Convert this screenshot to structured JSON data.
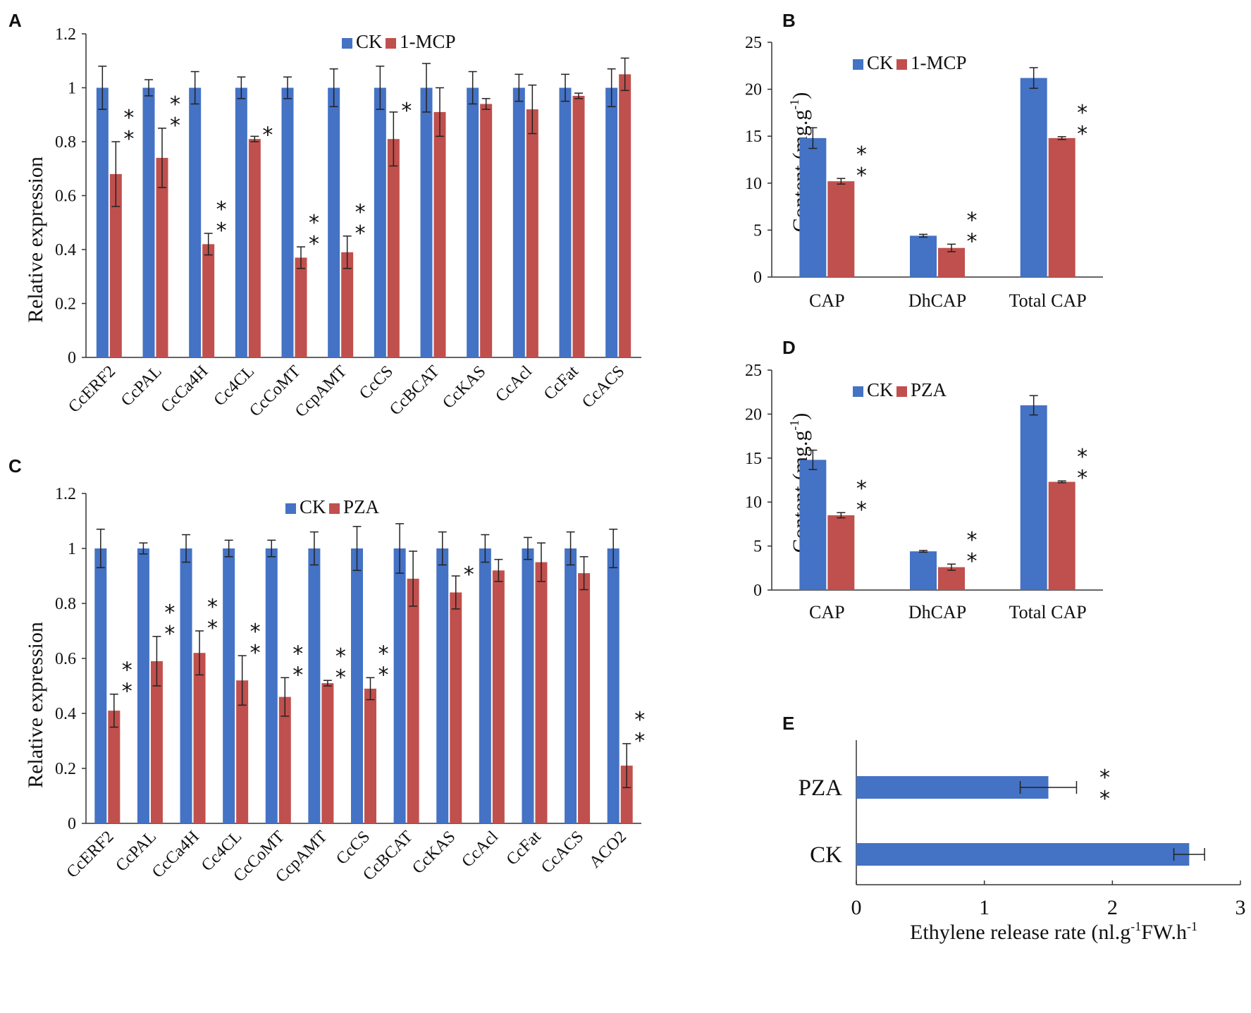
{
  "colors": {
    "ck": "#4472C4",
    "treat": "#C0504D",
    "axis": "#333333",
    "text": "#111111"
  },
  "chart_data": [
    {
      "panel": "A",
      "type": "bar",
      "ylabel": "Relative expression",
      "ylim": [
        0,
        1.2
      ],
      "yticks": [
        0,
        0.2,
        0.4,
        0.6,
        0.8,
        1,
        1.2
      ],
      "ytick_labels": [
        "0",
        "0.2",
        "0.4",
        "0.6",
        "0.8",
        "1",
        "1.2"
      ],
      "legend_position": "top-center",
      "categories": [
        "CcERF2",
        "CcPAL",
        "CcCa4H",
        "Cc4CL",
        "CcCoMT",
        "CcpAMT",
        "CcCS",
        "CcBCAT",
        "CcKAS",
        "CcAcl",
        "CcFat",
        "CcACS"
      ],
      "series": [
        {
          "name": "CK",
          "values": [
            1,
            1,
            1,
            1,
            1,
            1,
            1,
            1,
            1,
            1,
            1,
            1
          ],
          "errors": [
            0.08,
            0.03,
            0.06,
            0.04,
            0.04,
            0.07,
            0.08,
            0.09,
            0.06,
            0.05,
            0.05,
            0.07
          ]
        },
        {
          "name": "1-MCP",
          "values": [
            0.68,
            0.74,
            0.42,
            0.81,
            0.37,
            0.39,
            0.81,
            0.91,
            0.94,
            0.92,
            0.97,
            1.05
          ],
          "errors": [
            0.12,
            0.11,
            0.04,
            0.01,
            0.04,
            0.06,
            0.1,
            0.09,
            0.02,
            0.09,
            0.01,
            0.06
          ]
        }
      ],
      "significance": [
        "**",
        "**",
        "**",
        "*",
        "**",
        "**",
        "*",
        "",
        "",
        "",
        "",
        ""
      ]
    },
    {
      "panel": "B",
      "type": "bar",
      "ylabel": "Content (mg.g-1)",
      "ylabel_main": "Content",
      "ylabel_unit": "(mg.g",
      "ylabel_sup": "-1",
      "ylabel_close": ")",
      "ylim": [
        0,
        25
      ],
      "yticks": [
        0,
        5,
        10,
        15,
        20,
        25
      ],
      "ytick_labels": [
        "0",
        "5",
        "10",
        "15",
        "20",
        "25"
      ],
      "legend_position": "top-left",
      "categories": [
        "CAP",
        "DhCAP",
        "Total CAP"
      ],
      "series": [
        {
          "name": "CK",
          "values": [
            14.8,
            4.4,
            21.2
          ],
          "errors": [
            1.1,
            0.15,
            1.1
          ]
        },
        {
          "name": "1-MCP",
          "values": [
            10.2,
            3.1,
            14.8
          ],
          "errors": [
            0.3,
            0.4,
            0.15
          ]
        }
      ],
      "significance": [
        "**",
        "**",
        "**"
      ]
    },
    {
      "panel": "C",
      "type": "bar",
      "ylabel": "Relative expression",
      "ylim": [
        0,
        1.2
      ],
      "yticks": [
        0,
        0.2,
        0.4,
        0.6,
        0.8,
        1,
        1.2
      ],
      "ytick_labels": [
        "0",
        "0.2",
        "0.4",
        "0.6",
        "0.8",
        "1",
        "1.2"
      ],
      "legend_position": "top-center",
      "categories": [
        "CcERF2",
        "CcPAL",
        "CcCa4H",
        "Cc4CL",
        "CcCoMT",
        "CcpAMT",
        "CcCS",
        "CcBCAT",
        "CcKAS",
        "CcAcl",
        "CcFat",
        "CcACS",
        "ACO2"
      ],
      "series": [
        {
          "name": "CK",
          "values": [
            1,
            1,
            1,
            1,
            1,
            1,
            1,
            1,
            1,
            1,
            1,
            1,
            1
          ],
          "errors": [
            0.07,
            0.02,
            0.05,
            0.03,
            0.03,
            0.06,
            0.08,
            0.09,
            0.06,
            0.05,
            0.04,
            0.06,
            0.07
          ]
        },
        {
          "name": "PZA",
          "values": [
            0.41,
            0.59,
            0.62,
            0.52,
            0.46,
            0.51,
            0.49,
            0.89,
            0.84,
            0.92,
            0.95,
            0.91,
            0.21
          ]
        },
        {
          "name": "_err",
          "values": [
            0.06,
            0.09,
            0.08,
            0.09,
            0.07,
            0.01,
            0.04,
            0.1,
            0.06,
            0.04,
            0.07,
            0.06,
            0.08
          ]
        }
      ],
      "significance": [
        "**",
        "**",
        "**",
        "**",
        "**",
        "**",
        "**",
        "",
        "*",
        "",
        "",
        "",
        "**"
      ]
    },
    {
      "panel": "D",
      "type": "bar",
      "ylabel": "Content (mg.g-1)",
      "ylabel_main": "Content",
      "ylabel_unit": "(mg.g",
      "ylabel_sup": "-1",
      "ylabel_close": ")",
      "ylim": [
        0,
        25
      ],
      "yticks": [
        0,
        5,
        10,
        15,
        20,
        25
      ],
      "ytick_labels": [
        "0",
        "5",
        "10",
        "15",
        "20",
        "25"
      ],
      "legend_position": "top-left",
      "categories": [
        "CAP",
        "DhCAP",
        "Total CAP"
      ],
      "series": [
        {
          "name": "CK",
          "values": [
            14.8,
            4.4,
            21.0
          ],
          "errors": [
            1.1,
            0.1,
            1.1
          ]
        },
        {
          "name": "PZA",
          "values": [
            8.5,
            2.6,
            12.3
          ],
          "errors": [
            0.3,
            0.35,
            0.1
          ]
        }
      ],
      "significance": [
        "**",
        "**",
        "**"
      ]
    },
    {
      "panel": "E",
      "type": "bar",
      "orientation": "horizontal",
      "xlabel": "Ethylene release rate (nl.g-1FW.h-1",
      "xlabel_a": "Ethylene  release  rate  (nl.g",
      "xlabel_sup1": "-1",
      "xlabel_b": "FW.h",
      "xlabel_sup2": "-1",
      "xlim": [
        0,
        3
      ],
      "xticks": [
        0,
        1,
        2,
        3
      ],
      "xtick_labels": [
        "0",
        "1",
        "2",
        "3"
      ],
      "categories": [
        "PZA",
        "CK"
      ],
      "values": [
        1.5,
        2.6
      ],
      "errors": [
        0.22,
        0.12
      ],
      "significance": [
        "**",
        ""
      ]
    }
  ]
}
